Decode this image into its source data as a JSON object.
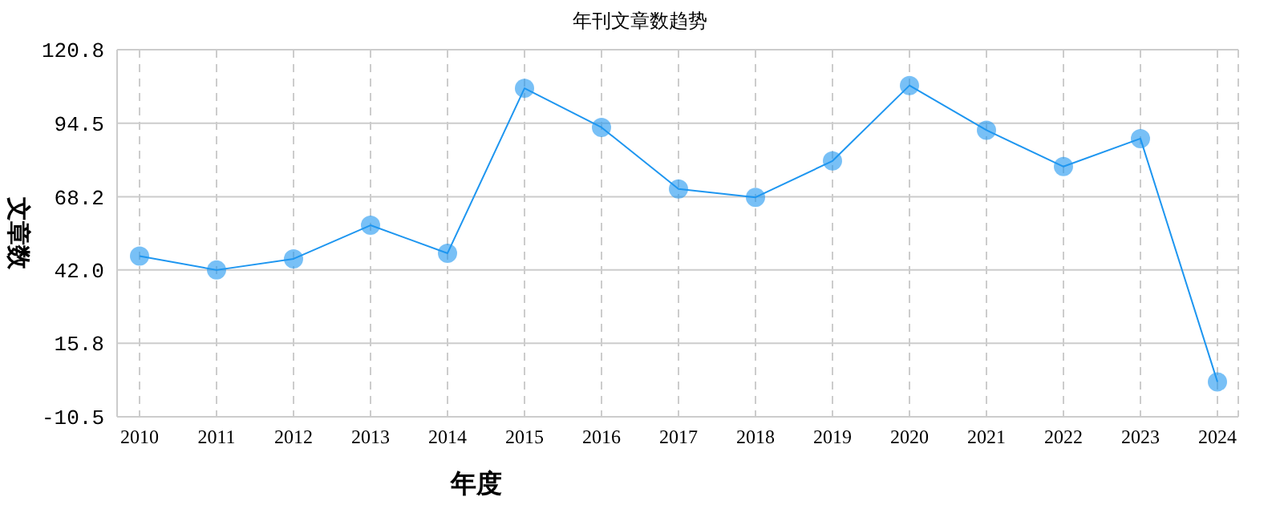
{
  "chart_data": {
    "type": "line",
    "title": "年刊文章数趋势",
    "xlabel": "年度",
    "ylabel": "文章数",
    "categories": [
      "2010",
      "2011",
      "2012",
      "2013",
      "2014",
      "2015",
      "2016",
      "2017",
      "2018",
      "2019",
      "2020",
      "2021",
      "2022",
      "2023",
      "2024"
    ],
    "series": [
      {
        "color": "#1e96f0",
        "values": [
          47,
          42,
          46,
          58,
          48,
          107,
          93,
          71,
          68,
          81,
          108,
          92,
          79,
          89,
          2
        ]
      }
    ],
    "ylim": [
      -10.5,
      120.8
    ],
    "yticks": [
      {
        "value": -10.5,
        "label": "-10.5"
      },
      {
        "value": 15.8,
        "label": "15.8"
      },
      {
        "value": 42.0,
        "label": "42.0"
      },
      {
        "value": 68.2,
        "label": "68.2"
      },
      {
        "value": 94.5,
        "label": "94.5"
      },
      {
        "value": 120.8,
        "label": "120.8"
      }
    ],
    "grid": true,
    "marker": "circle",
    "line_style": "solid",
    "legend": false
  }
}
